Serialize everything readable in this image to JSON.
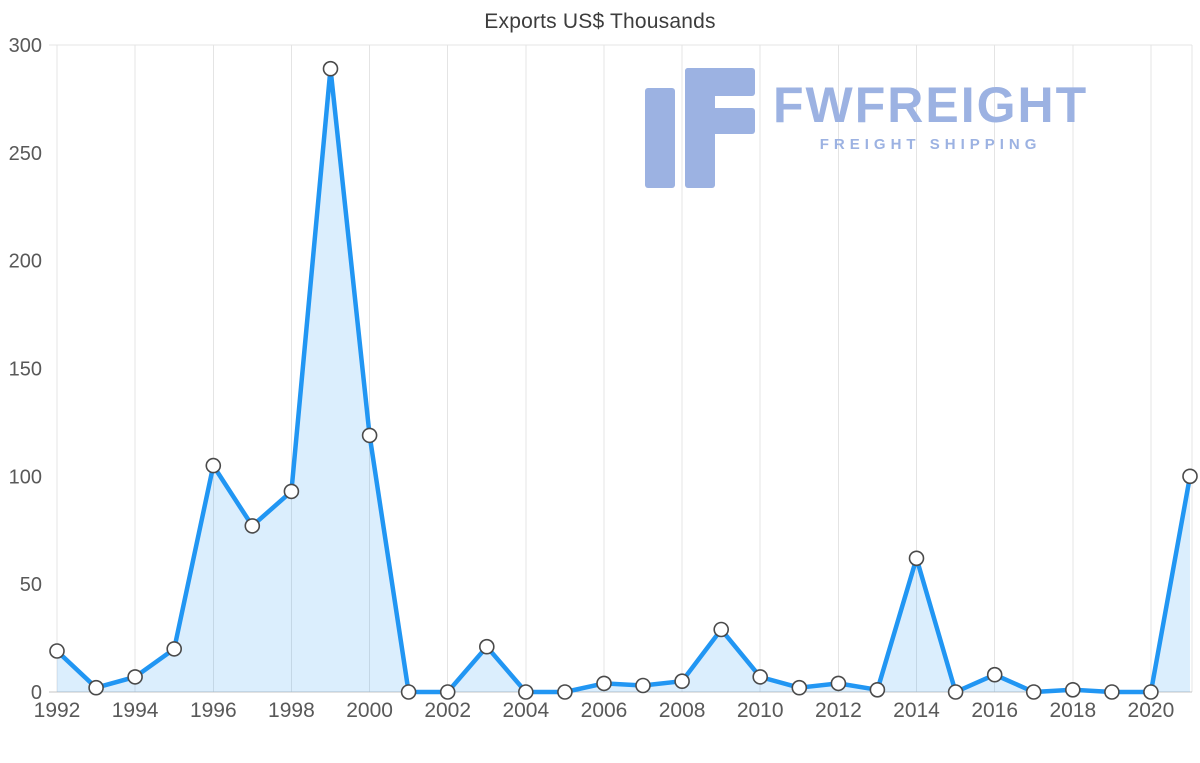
{
  "title": "Exports US$ Thousands",
  "watermark": {
    "brand": "FWFREIGHT",
    "tagline": "FREIGHT SHIPPING",
    "color": "#9cb2e2"
  },
  "chart_data": {
    "type": "area",
    "title": "Exports US$ Thousands",
    "x": [
      1992,
      1993,
      1994,
      1995,
      1996,
      1997,
      1998,
      1999,
      2000,
      2001,
      2002,
      2003,
      2004,
      2005,
      2006,
      2007,
      2008,
      2009,
      2010,
      2011,
      2012,
      2013,
      2014,
      2015,
      2016,
      2017,
      2018,
      2019,
      2020,
      2021
    ],
    "values": [
      19,
      2,
      7,
      20,
      105,
      77,
      93,
      289,
      119,
      0,
      0,
      21,
      0,
      0,
      4,
      3,
      5,
      29,
      7,
      2,
      4,
      1,
      62,
      0,
      8,
      0,
      1,
      0,
      0,
      100
    ],
    "xticks": [
      1992,
      1994,
      1996,
      1998,
      2000,
      2002,
      2004,
      2006,
      2008,
      2010,
      2012,
      2014,
      2016,
      2018,
      2020
    ],
    "yticks": [
      0,
      50,
      100,
      150,
      200,
      250,
      300
    ],
    "ylim": [
      0,
      300
    ],
    "xlabel": "",
    "ylabel": "",
    "legend": "none",
    "grid": "vertical",
    "line_color": "#2196f3",
    "fill_color": "rgba(33,150,243,0.16)",
    "grid_color": "#e4e4e4",
    "axis_color": "#c4c4c4",
    "tick_color": "#595959",
    "marker_fill": "#ffffff",
    "marker_stroke": "#4a4a4a"
  }
}
